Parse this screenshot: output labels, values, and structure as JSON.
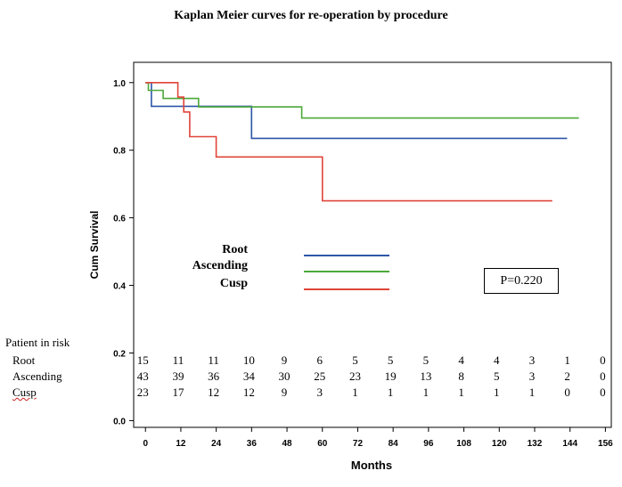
{
  "chart_data": {
    "type": "line",
    "step": true,
    "title": "Kaplan Meier curves for re-operation  by procedure",
    "xlabel": "Months",
    "ylabel": "Cum Survival",
    "xlim": [
      -4,
      158
    ],
    "ylim": [
      -0.02,
      1.06
    ],
    "x_ticks": [
      0,
      12,
      24,
      36,
      48,
      60,
      72,
      84,
      96,
      108,
      120,
      132,
      144,
      156
    ],
    "x_tick_labels": [
      "0",
      "12",
      "24",
      "36",
      "48",
      "60",
      "72",
      "84",
      "96",
      "108",
      "120",
      "132",
      "144",
      "156"
    ],
    "y_ticks": [
      0.0,
      0.2,
      0.4,
      0.6,
      0.8,
      1.0
    ],
    "y_tick_labels": [
      "0.0",
      "0.2",
      "0.4",
      "0.6",
      "0.8",
      "1.0"
    ],
    "grid": false,
    "series": [
      {
        "name": "Root",
        "color": "#2e55a8",
        "points": [
          [
            0,
            1.0
          ],
          [
            2,
            1.0
          ],
          [
            2,
            0.93
          ],
          [
            36,
            0.93
          ],
          [
            36,
            0.835
          ],
          [
            143,
            0.835
          ]
        ]
      },
      {
        "name": "Ascending",
        "color": "#4ca83a",
        "points": [
          [
            0,
            1.0
          ],
          [
            1,
            1.0
          ],
          [
            1,
            0.977
          ],
          [
            6,
            0.977
          ],
          [
            6,
            0.953
          ],
          [
            18,
            0.953
          ],
          [
            18,
            0.928
          ],
          [
            53,
            0.928
          ],
          [
            53,
            0.895
          ],
          [
            147,
            0.895
          ]
        ]
      },
      {
        "name": "Cusp",
        "color": "#e0453a",
        "points": [
          [
            0,
            1.0
          ],
          [
            11,
            1.0
          ],
          [
            11,
            0.957
          ],
          [
            13,
            0.957
          ],
          [
            13,
            0.913
          ],
          [
            15,
            0.913
          ],
          [
            15,
            0.84
          ],
          [
            24,
            0.84
          ],
          [
            24,
            0.78
          ],
          [
            60,
            0.78
          ],
          [
            60,
            0.65
          ],
          [
            138,
            0.65
          ]
        ]
      }
    ],
    "legend": {
      "placement": "center",
      "entries": [
        "Root",
        "Ascending",
        "Cusp"
      ]
    },
    "annotation": "P=0.220",
    "risk_table": {
      "title": "Patient in risk",
      "rows": [
        {
          "label": "Root",
          "values": [
            "15",
            "11",
            "11",
            "10",
            "9",
            "6",
            "5",
            "5",
            "5",
            "4",
            "4",
            "3",
            "1",
            "0"
          ]
        },
        {
          "label": "Ascending",
          "values": [
            "43",
            "39",
            "36",
            "34",
            "30",
            "25",
            "23",
            "19",
            "13",
            "8",
            "5",
            "3",
            "2",
            "0"
          ]
        },
        {
          "label": "Cusp",
          "values": [
            "23",
            "17",
            "12",
            "12",
            "9",
            "3",
            "1",
            "1",
            "1",
            "1",
            "1",
            "1",
            "0",
            "0"
          ]
        }
      ]
    }
  }
}
